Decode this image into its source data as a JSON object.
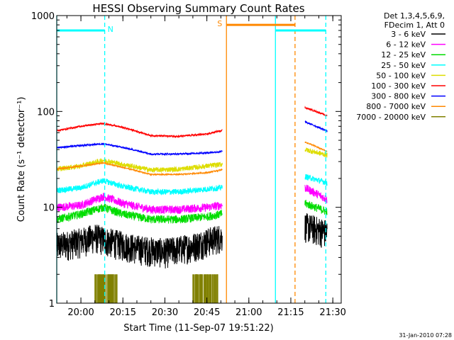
{
  "chart_data": {
    "type": "line",
    "title": "HESSI Observing Summary Count Rates",
    "xlabel": "Start Time (11-Sep-07 19:51:22)",
    "ylabel": "Count Rate (s⁻¹ detector⁻¹)",
    "yscale": "log",
    "ylim": [
      1,
      1000
    ],
    "xlim": [
      "19:51:22",
      "21:33:00"
    ],
    "x_ticks": [
      "20:00",
      "20:15",
      "20:30",
      "20:45",
      "21:00",
      "21:15",
      "21:30"
    ],
    "y_ticks": [
      "1",
      "10",
      "100",
      "1000"
    ],
    "legend_header": [
      "Det 1,3,4,5,6,9,",
      "FDecim 1, Att 0"
    ],
    "legend_position": "right",
    "footer": "31-Jan-2010 07:28",
    "gaps": [
      [
        "20:50:30",
        "21:20:00"
      ]
    ],
    "series": [
      {
        "name": "3 - 6 keV",
        "color": "#000000",
        "noise": 0.35,
        "points": [
          [
            "19:51:22",
            4.0
          ],
          [
            "20:00",
            4.5
          ],
          [
            "20:05",
            5.0
          ],
          [
            "20:10",
            4.5
          ],
          [
            "20:20",
            3.8
          ],
          [
            "20:30",
            3.5
          ],
          [
            "20:40",
            4.0
          ],
          [
            "20:50",
            5.0
          ],
          [
            "21:20",
            6.5
          ],
          [
            "21:28",
            5.5
          ]
        ]
      },
      {
        "name": "6 - 12 keV",
        "color": "#ff00ff",
        "noise": 0.1,
        "points": [
          [
            "19:51:22",
            10.0
          ],
          [
            "20:00",
            10.5
          ],
          [
            "20:08",
            13.0
          ],
          [
            "20:15",
            11.0
          ],
          [
            "20:25",
            9.5
          ],
          [
            "20:35",
            9.5
          ],
          [
            "20:45",
            10.0
          ],
          [
            "20:50",
            10.5
          ],
          [
            "21:20",
            16.0
          ],
          [
            "21:28",
            12.0
          ]
        ]
      },
      {
        "name": "12 - 25 keV",
        "color": "#00dd00",
        "noise": 0.1,
        "points": [
          [
            "19:51:22",
            7.5
          ],
          [
            "20:00",
            8.5
          ],
          [
            "20:08",
            10.0
          ],
          [
            "20:15",
            8.5
          ],
          [
            "20:25",
            7.5
          ],
          [
            "20:35",
            7.5
          ],
          [
            "20:45",
            8.0
          ],
          [
            "20:50",
            8.5
          ],
          [
            "21:20",
            11.0
          ],
          [
            "21:28",
            9.0
          ]
        ]
      },
      {
        "name": "25 - 50 keV",
        "color": "#00ffff",
        "noise": 0.07,
        "points": [
          [
            "19:51:22",
            15.0
          ],
          [
            "20:00",
            16.0
          ],
          [
            "20:08",
            19.0
          ],
          [
            "20:15",
            16.5
          ],
          [
            "20:25",
            14.5
          ],
          [
            "20:35",
            14.5
          ],
          [
            "20:45",
            15.5
          ],
          [
            "20:50",
            16.0
          ],
          [
            "21:20",
            21.0
          ],
          [
            "21:28",
            18.0
          ]
        ]
      },
      {
        "name": "50 - 100 keV",
        "color": "#dddd00",
        "noise": 0.06,
        "points": [
          [
            "19:51:22",
            25.0
          ],
          [
            "20:00",
            27.0
          ],
          [
            "20:08",
            31.0
          ],
          [
            "20:15",
            28.0
          ],
          [
            "20:25",
            24.5
          ],
          [
            "20:35",
            25.0
          ],
          [
            "20:45",
            27.0
          ],
          [
            "20:50",
            28.0
          ],
          [
            "21:20",
            40.0
          ],
          [
            "21:28",
            35.0
          ]
        ]
      },
      {
        "name": "100 - 300 keV",
        "color": "#ff0000",
        "noise": 0.02,
        "points": [
          [
            "19:51:22",
            63.0
          ],
          [
            "20:00",
            70.0
          ],
          [
            "20:08",
            75.0
          ],
          [
            "20:15",
            68.0
          ],
          [
            "20:25",
            56.0
          ],
          [
            "20:35",
            55.0
          ],
          [
            "20:45",
            58.0
          ],
          [
            "20:50",
            63.0
          ],
          [
            "21:20",
            110.0
          ],
          [
            "21:28",
            90.0
          ]
        ]
      },
      {
        "name": "300 - 800 keV",
        "color": "#0000ff",
        "noise": 0.02,
        "points": [
          [
            "19:51:22",
            42.0
          ],
          [
            "20:00",
            44.0
          ],
          [
            "20:08",
            46.0
          ],
          [
            "20:15",
            42.0
          ],
          [
            "20:25",
            36.0
          ],
          [
            "20:35",
            36.0
          ],
          [
            "20:45",
            37.0
          ],
          [
            "20:50",
            38.0
          ],
          [
            "21:20",
            78.0
          ],
          [
            "21:28",
            62.0
          ]
        ]
      },
      {
        "name": "800 - 7000 keV",
        "color": "#ff8800",
        "noise": 0.015,
        "points": [
          [
            "19:51:22",
            25.0
          ],
          [
            "20:00",
            27.0
          ],
          [
            "20:08",
            29.0
          ],
          [
            "20:15",
            26.0
          ],
          [
            "20:25",
            22.0
          ],
          [
            "20:35",
            22.0
          ],
          [
            "20:45",
            23.0
          ],
          [
            "20:50",
            24.5
          ],
          [
            "21:20",
            48.0
          ],
          [
            "21:28",
            38.0
          ]
        ]
      },
      {
        "name": "7000 - 20000 keV",
        "color": "#808000",
        "noise": 0,
        "points": [
          [
            "20:05",
            2.0
          ],
          [
            "20:13",
            2.0
          ],
          [
            "20:40",
            2.0
          ],
          [
            "20:49",
            2.0
          ]
        ]
      }
    ],
    "flags": [
      {
        "label": "N",
        "color": "#00ffff",
        "y": 700,
        "start": "19:51:22",
        "end": "20:08:30"
      },
      {
        "label": "",
        "color": "#00ffff",
        "y": 700,
        "start": "21:09:30",
        "end": "21:27:30"
      },
      {
        "label": "S",
        "color": "#ff8800",
        "y": 800,
        "start": "20:52:00",
        "end": "21:16:30"
      }
    ],
    "markers": [
      {
        "time": "19:51:22",
        "color": "#00ffff",
        "style": "solid"
      },
      {
        "time": "20:08:30",
        "color": "#00ffff",
        "style": "dashed"
      },
      {
        "time": "21:09:30",
        "color": "#00ffff",
        "style": "solid"
      },
      {
        "time": "21:27:30",
        "color": "#00ffff",
        "style": "dashed"
      },
      {
        "time": "20:52:00",
        "color": "#ff8800",
        "style": "solid"
      },
      {
        "time": "21:16:30",
        "color": "#ff8800",
        "style": "dashed"
      }
    ]
  }
}
